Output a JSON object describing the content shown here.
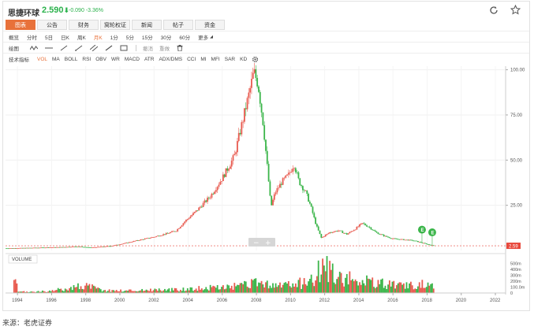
{
  "header": {
    "stock_name": "思捷环球",
    "price": "2.590",
    "price_arrow": "⬇",
    "change": "-0.090 -3.36%",
    "price_color": "#2bb24c"
  },
  "tabs": [
    {
      "label": "图表",
      "active": true
    },
    {
      "label": "公告",
      "active": false
    },
    {
      "label": "财务",
      "active": false
    },
    {
      "label": "窝轮权证",
      "active": false
    },
    {
      "label": "新闻",
      "active": false
    },
    {
      "label": "帖子",
      "active": false
    },
    {
      "label": "资金",
      "active": false
    }
  ],
  "periods": [
    "概览",
    "分时",
    "5日",
    "日K",
    "周K",
    "月K",
    "1分",
    "5分",
    "15分",
    "30分",
    "60分"
  ],
  "active_period": "月K",
  "period_more": "更多",
  "drawing": {
    "label": "绘图",
    "tools": [
      "wave-tool-icon",
      "horizontal-line-icon",
      "ray-line-icon",
      "trend-line-icon",
      "parallel-line-icon",
      "segment-line-icon",
      "rectangle-icon"
    ],
    "undo": "撤消",
    "redo": "重做",
    "delete_icon": "trash-icon"
  },
  "indicators": {
    "label": "技术指标",
    "items": [
      "VOL",
      "MA",
      "BOLL",
      "RSI",
      "OBV",
      "WR",
      "MACD",
      "ATR",
      "ADX/DMS",
      "CCI",
      "MI",
      "MFI",
      "SAR",
      "KD"
    ],
    "active": "VOL",
    "settings_icon": "gear-icon"
  },
  "colors": {
    "up": "#e85a4f",
    "down": "#3bb54a",
    "accent": "#e8713a",
    "price_tag": "#e8473b"
  },
  "chart_data": {
    "type": "candlestick",
    "x_ticks": [
      "1994",
      "1996",
      "1998",
      "2000",
      "2002",
      "2004",
      "2006",
      "2008",
      "2010",
      "2012",
      "2014",
      "2016",
      "2018",
      "2020",
      "2022"
    ],
    "x_range": [
      1993.3,
      2022.6
    ],
    "y_ticks": [
      "100.00",
      "75.00",
      "50.00",
      "25.00"
    ],
    "y_range": [
      0,
      102
    ],
    "current_price_label": "2.59",
    "price_path": [
      [
        1993.3,
        1.2
      ],
      [
        1995.0,
        1.5
      ],
      [
        1996.5,
        1.8
      ],
      [
        1997.5,
        2.2
      ],
      [
        1998.3,
        1.6
      ],
      [
        1999.5,
        2.5
      ],
      [
        2000.3,
        4.0
      ],
      [
        2001.0,
        5.5
      ],
      [
        2002.0,
        7.5
      ],
      [
        2002.8,
        9.5
      ],
      [
        2003.3,
        11.0
      ],
      [
        2003.8,
        16.0
      ],
      [
        2004.5,
        22.0
      ],
      [
        2005.3,
        30.0
      ],
      [
        2006.0,
        40.0
      ],
      [
        2006.7,
        52.0
      ],
      [
        2007.2,
        72.0
      ],
      [
        2007.6,
        88.0
      ],
      [
        2007.85,
        99.0
      ],
      [
        2008.1,
        92.0
      ],
      [
        2008.4,
        70.0
      ],
      [
        2008.7,
        40.0
      ],
      [
        2008.85,
        24.0
      ],
      [
        2009.1,
        32.0
      ],
      [
        2009.5,
        38.0
      ],
      [
        2009.9,
        42.0
      ],
      [
        2010.2,
        48.0
      ],
      [
        2010.5,
        38.0
      ],
      [
        2010.9,
        32.0
      ],
      [
        2011.2,
        24.0
      ],
      [
        2011.5,
        14.0
      ],
      [
        2011.8,
        7.0
      ],
      [
        2012.3,
        10.0
      ],
      [
        2012.8,
        11.0
      ],
      [
        2013.3,
        9.0
      ],
      [
        2013.8,
        12.0
      ],
      [
        2014.2,
        15.0
      ],
      [
        2014.6,
        13.0
      ],
      [
        2015.0,
        10.0
      ],
      [
        2015.5,
        8.0
      ],
      [
        2016.0,
        6.5
      ],
      [
        2016.6,
        6.0
      ],
      [
        2017.2,
        5.5
      ],
      [
        2017.8,
        4.0
      ],
      [
        2018.2,
        3.0
      ],
      [
        2018.4,
        2.59
      ]
    ],
    "volume_title": "VOLUME",
    "volume_y_ticks": [
      "500m",
      "400m",
      "300m",
      "200m",
      "100.0m",
      "0"
    ],
    "volume_y_range": [
      0,
      560
    ],
    "volume_bars": [
      [
        1994,
        25
      ],
      [
        1995,
        30
      ],
      [
        1996,
        40
      ],
      [
        1997,
        120
      ],
      [
        1998,
        170
      ],
      [
        1999,
        60
      ],
      [
        2000,
        55
      ],
      [
        2001,
        60
      ],
      [
        2002,
        75
      ],
      [
        2003,
        70
      ],
      [
        2004,
        95
      ],
      [
        2005,
        110
      ],
      [
        2006,
        130
      ],
      [
        2007,
        150
      ],
      [
        2008,
        220
      ],
      [
        2009,
        170
      ],
      [
        2010,
        180
      ],
      [
        2011,
        250
      ],
      [
        2012,
        580
      ],
      [
        2013,
        330
      ],
      [
        2014,
        280
      ],
      [
        2015,
        220
      ],
      [
        2016,
        180
      ],
      [
        2017,
        160
      ],
      [
        2018,
        200
      ]
    ],
    "event_markers": [
      {
        "x": 2017.7,
        "y": 11.5,
        "label": "E"
      },
      {
        "x": 2018.3,
        "y": 10.0,
        "label": "E"
      }
    ],
    "zoom": {
      "minus": "−",
      "plus": "+"
    }
  },
  "caption": "来源：老虎证券"
}
